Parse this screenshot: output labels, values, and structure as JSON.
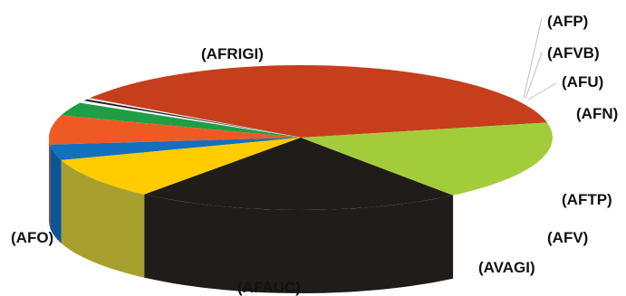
{
  "chart_data": {
    "type": "pie",
    "style": "3d",
    "title": "",
    "slices": [
      {
        "label": "(AFRIGI)",
        "value": 37.5,
        "color": "#c63e1c"
      },
      {
        "label": "(AFP)",
        "value": 0.3,
        "color": "#f2f2f2"
      },
      {
        "label": "(AFVB)",
        "value": 0.4,
        "color": "#1f1f1f"
      },
      {
        "label": "(AFU)",
        "value": 0.5,
        "color": "#ffffff"
      },
      {
        "label": "(AFN)",
        "value": 3.0,
        "color": "#1f9e45"
      },
      {
        "label": "(AFTP)",
        "value": 6.5,
        "color": "#ef5a24"
      },
      {
        "label": "(AFV)",
        "value": 3.5,
        "color": "#1270bf"
      },
      {
        "label": "(AVAGI)",
        "value": 9.3,
        "color": "#ffcc00"
      },
      {
        "label": "(AFAUC)",
        "value": 21.0,
        "color": "#1f1c1a"
      },
      {
        "label": "(AFO)",
        "value": 18.0,
        "color": "#a3cc3a"
      }
    ],
    "side_colors": {
      "(AFTP)": "#b3431c",
      "(AFV)": "#0e5596",
      "(AVAGI)": "#a8a02e",
      "(AFAUC)": "#1f1c1a",
      "(AFO)": "#6f8a43"
    }
  }
}
